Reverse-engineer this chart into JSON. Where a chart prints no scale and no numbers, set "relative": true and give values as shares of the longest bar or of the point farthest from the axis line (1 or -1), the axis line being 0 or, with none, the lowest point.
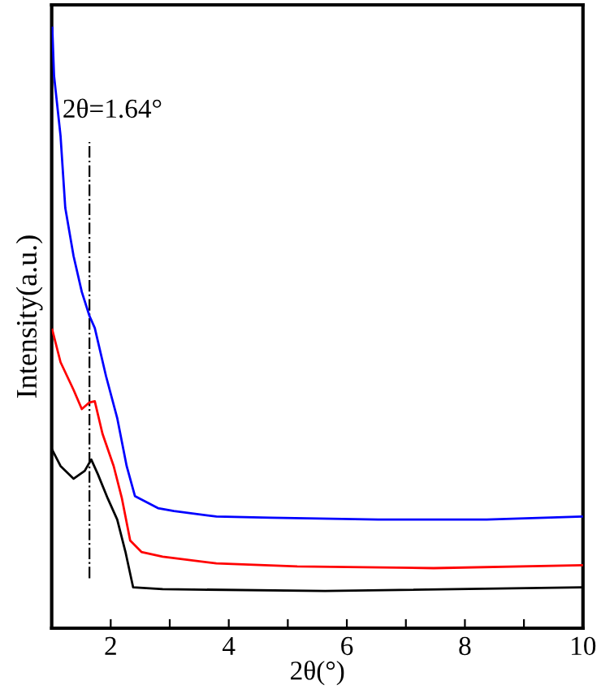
{
  "chart_data": {
    "type": "line",
    "xlabel": "2θ(°)",
    "ylabel": "Intensity(a.u.)",
    "relative": true,
    "xlim": [
      1,
      10
    ],
    "xticks": [
      2,
      {
        "value": 3,
        "label": null
      },
      4,
      {
        "value": 5,
        "label": null
      },
      6,
      {
        "value": 7,
        "label": null
      },
      8,
      {
        "value": 9,
        "label": null
      },
      10
    ],
    "grid": false,
    "legend": false,
    "marker": "none",
    "line_style": "solid",
    "ref_lines": [
      {
        "axis": "x",
        "value": 1.64,
        "label": "2θ=1.64°",
        "color": "#000000",
        "line_style": "dashdot"
      }
    ],
    "series": [
      {
        "color": "#0000ff",
        "x": [
          1.01,
          1.04,
          1.15,
          1.23,
          1.37,
          1.51,
          1.64,
          1.73,
          1.92,
          2.11,
          2.27,
          2.41,
          2.8,
          3.07,
          3.79,
          4.72,
          6.53,
          8.37,
          10.0
        ],
        "values": [
          1.0,
          0.92,
          0.82,
          0.7,
          0.62,
          0.56,
          0.52,
          0.5,
          0.42,
          0.35,
          0.27,
          0.22,
          0.2,
          0.195,
          0.186,
          0.184,
          0.181,
          0.181,
          0.186
        ]
      },
      {
        "color": "#ff0000",
        "x": [
          1.01,
          1.15,
          1.37,
          1.51,
          1.64,
          1.73,
          1.86,
          2.05,
          2.19,
          2.33,
          2.52,
          2.88,
          3.79,
          5.16,
          7.47,
          10.0
        ],
        "values": [
          0.497,
          0.443,
          0.397,
          0.365,
          0.376,
          0.378,
          0.324,
          0.27,
          0.216,
          0.146,
          0.127,
          0.119,
          0.108,
          0.103,
          0.1,
          0.105
        ]
      },
      {
        "color": "#000000",
        "x": [
          1.01,
          1.15,
          1.37,
          1.56,
          1.67,
          1.78,
          1.95,
          2.11,
          2.25,
          2.38,
          2.88,
          5.63,
          10.0
        ],
        "values": [
          0.297,
          0.27,
          0.249,
          0.262,
          0.281,
          0.257,
          0.216,
          0.181,
          0.127,
          0.068,
          0.065,
          0.062,
          0.068
        ]
      }
    ]
  }
}
